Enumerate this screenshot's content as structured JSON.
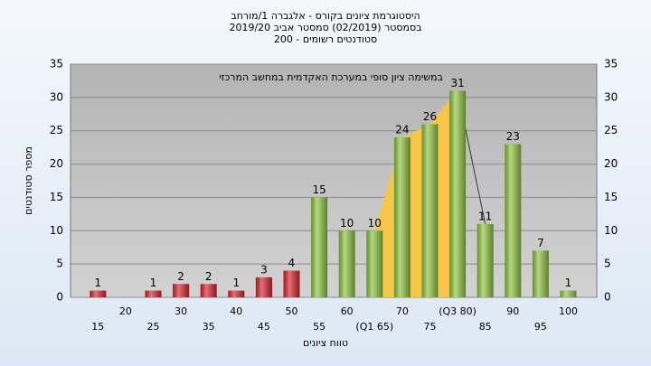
{
  "chart_data": {
    "type": "bar",
    "title": [
      "היסטוגרמת ציונים בקורס - אלגברה 1/מורחב",
      "בסמסטר (02/2019) סמסטר אביב 2019/20",
      "סטודנטים רשומים - 200"
    ],
    "annotation": "במשימה   ציון סופי במערכת האקדמית במחשב המרכזי",
    "x_label": "טווח ציונים",
    "y_label": "מספר סטודנטים",
    "categories": [
      "15",
      "20",
      "25",
      "30",
      "35",
      "40",
      "45",
      "50",
      "55",
      "60",
      "(Q1 65)",
      "70",
      "75",
      "(Q3 80)",
      "85",
      "90",
      "95",
      "100"
    ],
    "values": [
      1,
      0,
      1,
      2,
      2,
      1,
      3,
      4,
      15,
      10,
      10,
      24,
      26,
      31,
      11,
      23,
      7,
      1
    ],
    "value_labels": [
      "1",
      null,
      "1",
      "2",
      "2",
      "1",
      "3",
      "4",
      "15",
      "10",
      "10",
      "24",
      "26",
      "31",
      "11",
      "23",
      "7",
      "1"
    ],
    "colors": [
      "#d9232a",
      "#d9232a",
      "#d9232a",
      "#d9232a",
      "#d9232a",
      "#d9232a",
      "#d9232a",
      "#d9232a",
      "#8cc63f",
      "#8cc63f",
      "#8cc63f",
      "#8cc63f",
      "#8cc63f",
      "#8cc63f",
      "#8cc63f",
      "#8cc63f",
      "#8cc63f",
      "#8cc63f"
    ],
    "ylim": [
      0,
      35
    ],
    "yticks": [
      0,
      5,
      10,
      15,
      20,
      25,
      30,
      35
    ],
    "grid": true
  }
}
